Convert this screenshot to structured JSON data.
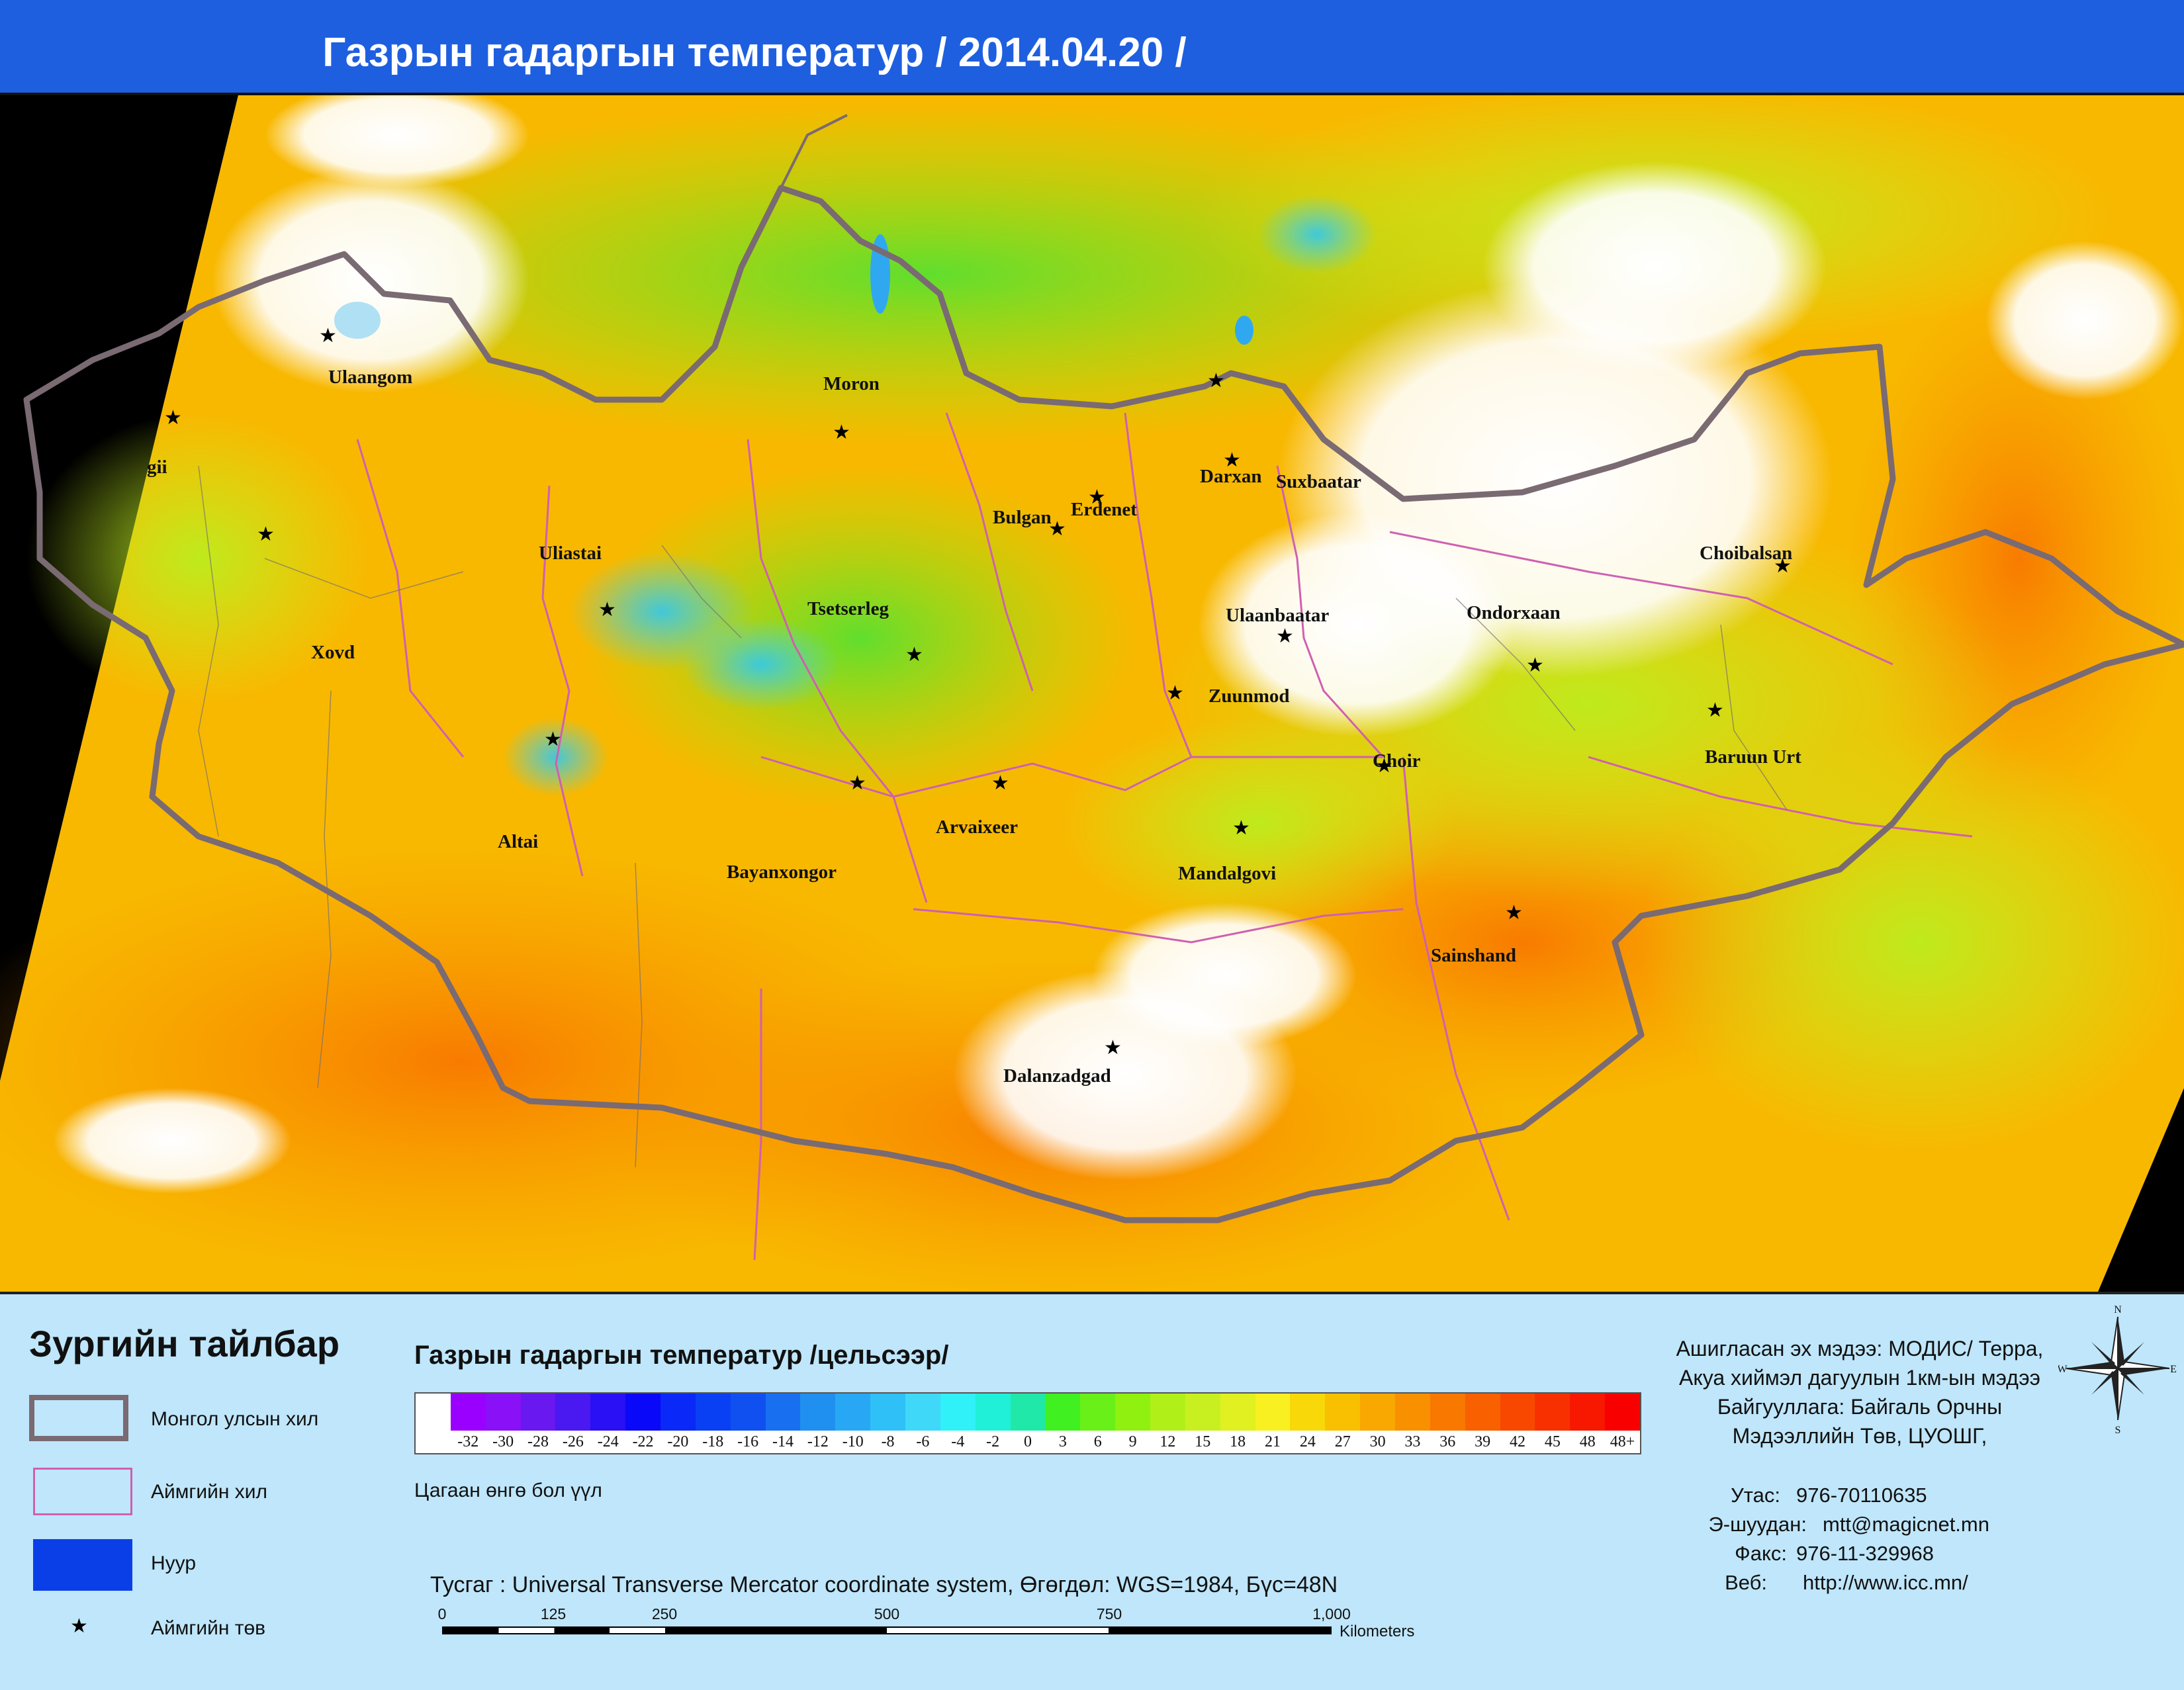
{
  "title": "Газрын гадаргын температур / 2014.04.20  /",
  "colors": {
    "title_bg": "#1e5fe0",
    "legend_bg": "#bfe6fa",
    "national_border": "#7a6a72",
    "aimag_border": "#d060b0",
    "lake": "#0a3fe8",
    "off_swath": "#000000",
    "cloud_white": "#ffffff"
  },
  "map": {
    "cities": [
      {
        "name": "Ulaangom"
      },
      {
        "name": "Moron"
      },
      {
        "name": "Darxan"
      },
      {
        "name": "Suxbaatar"
      },
      {
        "name": "Erdenet"
      },
      {
        "name": "Bulgan"
      },
      {
        "name": "Uliastai"
      },
      {
        "name": "Tsetserleg"
      },
      {
        "name": "Ulaanbaatar"
      },
      {
        "name": "Choibalsan"
      },
      {
        "name": "Ondorxaan"
      },
      {
        "name": "Xovd"
      },
      {
        "name": "Zuunmod"
      },
      {
        "name": "Choir"
      },
      {
        "name": "Baruun Urt"
      },
      {
        "name": "Arvaixeer"
      },
      {
        "name": "Altai"
      },
      {
        "name": "Bayanxongor"
      },
      {
        "name": "Mandalgovi"
      },
      {
        "name": "Sainshand"
      },
      {
        "name": "Dalanzadgad"
      },
      {
        "name": "gii"
      }
    ]
  },
  "legend": {
    "title": "Зургийн тайлбар",
    "items": [
      {
        "label": "Монгол улсын хил",
        "icon": "national-border-swatch"
      },
      {
        "label": "Аймгийн хил",
        "icon": "aimag-border-swatch"
      },
      {
        "label": "Нуур",
        "icon": "lake-swatch"
      },
      {
        "label": "Аймгийн төв",
        "icon": "star-icon"
      }
    ]
  },
  "color_scale": {
    "title": "Газрын гадаргын температур /цельсээр/",
    "white_note": "Цагаан өнгө бол үүл",
    "stops": [
      {
        "label": "",
        "color": "#ffffff"
      },
      {
        "label": "-32",
        "color": "#9a00ff"
      },
      {
        "label": "-30",
        "color": "#8a10f8"
      },
      {
        "label": "-28",
        "color": "#6a18f0"
      },
      {
        "label": "-26",
        "color": "#4a18f0"
      },
      {
        "label": "-24",
        "color": "#2a10f4"
      },
      {
        "label": "-22",
        "color": "#0a08f8"
      },
      {
        "label": "-20",
        "color": "#0a28f8"
      },
      {
        "label": "-18",
        "color": "#0a40f4"
      },
      {
        "label": "-16",
        "color": "#1050f0"
      },
      {
        "label": "-14",
        "color": "#1870f0"
      },
      {
        "label": "-12",
        "color": "#2090f0"
      },
      {
        "label": "-10",
        "color": "#28a8f4"
      },
      {
        "label": "-8",
        "color": "#30c0f8"
      },
      {
        "label": "-6",
        "color": "#40d8f8"
      },
      {
        "label": "-4",
        "color": "#30f0f8"
      },
      {
        "label": "-2",
        "color": "#20f0d8"
      },
      {
        "label": "0",
        "color": "#20e8a8"
      },
      {
        "label": "3",
        "color": "#40f020"
      },
      {
        "label": "6",
        "color": "#68f018"
      },
      {
        "label": "9",
        "color": "#90f010"
      },
      {
        "label": "12",
        "color": "#b0f018"
      },
      {
        "label": "15",
        "color": "#c8f020"
      },
      {
        "label": "18",
        "color": "#e0f020"
      },
      {
        "label": "21",
        "color": "#f8f020"
      },
      {
        "label": "24",
        "color": "#f8d808"
      },
      {
        "label": "27",
        "color": "#f8c000"
      },
      {
        "label": "30",
        "color": "#f8a800"
      },
      {
        "label": "33",
        "color": "#f89000"
      },
      {
        "label": "36",
        "color": "#f87800"
      },
      {
        "label": "39",
        "color": "#f86000"
      },
      {
        "label": "42",
        "color": "#f84800"
      },
      {
        "label": "45",
        "color": "#f83000"
      },
      {
        "label": "48",
        "color": "#f81800"
      },
      {
        "label": "48+",
        "color": "#f80000"
      }
    ]
  },
  "projection_note": "Тусгаг : Universal Transverse Mercator coordinate system, Өгөгдөл: WGS=1984, Бүс=48N",
  "scale_bar": {
    "ticks": [
      "0",
      "125",
      "250",
      "500",
      "750",
      "1,000"
    ],
    "unit": "Kilometers"
  },
  "info": {
    "source_lines": [
      "Ашигласан эх мэдээ: МОДИС/ Терра,",
      "Акуа хиймэл дагуулын 1км-ын мэдээ",
      "Байгууллага: Байгаль Орчны",
      "Мэдээллийн Төв, ЦУОШГ,"
    ],
    "contacts": [
      {
        "label": "Утас:",
        "value": "976-70110635"
      },
      {
        "label": "Э-шуудан:",
        "value": "mtt@magicnet.mn"
      },
      {
        "label": "Факс:",
        "value": "976-11-329968"
      },
      {
        "label": "Веб:",
        "value": "http://www.icc.mn/"
      }
    ]
  },
  "compass": {
    "n": "N",
    "s": "S",
    "e": "E",
    "w": "W"
  }
}
